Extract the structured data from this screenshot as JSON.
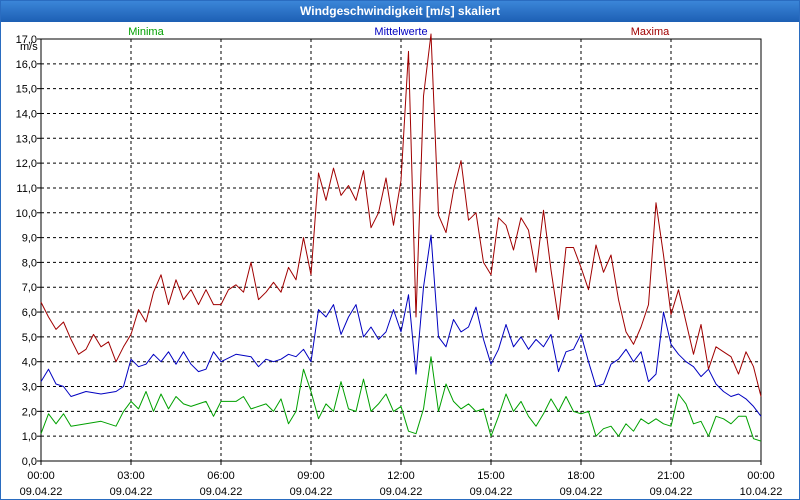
{
  "chart_data": {
    "type": "line",
    "title": "Windgeschwindigkeit [m/s] skaliert",
    "ylabel": "m/s",
    "ylim": [
      0,
      17
    ],
    "yticks": [
      "0,0",
      "1,0",
      "2,0",
      "3,0",
      "4,0",
      "5,0",
      "6,0",
      "7,0",
      "8,0",
      "9,0",
      "10,0",
      "11,0",
      "12,0",
      "13,0",
      "14,0",
      "15,0",
      "16,0",
      "17,0"
    ],
    "xlim": [
      0,
      24
    ],
    "xticks": [
      {
        "time": "00:00",
        "date": "09.04.22"
      },
      {
        "time": "03:00",
        "date": "09.04.22"
      },
      {
        "time": "06:00",
        "date": "09.04.22"
      },
      {
        "time": "09:00",
        "date": "09.04.22"
      },
      {
        "time": "12:00",
        "date": "09.04.22"
      },
      {
        "time": "15:00",
        "date": "09.04.22"
      },
      {
        "time": "18:00",
        "date": "09.04.22"
      },
      {
        "time": "21:00",
        "date": "09.04.22"
      },
      {
        "time": "00:00",
        "date": "10.04.22"
      }
    ],
    "grid": true,
    "series": [
      {
        "name": "Minima",
        "color": "#00a000",
        "points": [
          [
            0,
            1.1
          ],
          [
            0.25,
            1.9
          ],
          [
            0.5,
            1.5
          ],
          [
            0.75,
            1.9
          ],
          [
            1,
            1.4
          ],
          [
            1.5,
            1.5
          ],
          [
            2,
            1.6
          ],
          [
            2.5,
            1.4
          ],
          [
            2.75,
            2.0
          ],
          [
            3,
            2.4
          ],
          [
            3.25,
            2.1
          ],
          [
            3.5,
            2.8
          ],
          [
            3.75,
            2.0
          ],
          [
            4,
            2.7
          ],
          [
            4.25,
            2.1
          ],
          [
            4.5,
            2.6
          ],
          [
            4.75,
            2.3
          ],
          [
            5,
            2.2
          ],
          [
            5.5,
            2.4
          ],
          [
            5.75,
            1.8
          ],
          [
            6,
            2.4
          ],
          [
            6.5,
            2.4
          ],
          [
            6.75,
            2.6
          ],
          [
            7,
            2.1
          ],
          [
            7.5,
            2.3
          ],
          [
            7.75,
            2.0
          ],
          [
            8,
            2.5
          ],
          [
            8.25,
            1.5
          ],
          [
            8.5,
            2.0
          ],
          [
            8.75,
            3.7
          ],
          [
            9,
            2.8
          ],
          [
            9.25,
            1.7
          ],
          [
            9.5,
            2.3
          ],
          [
            9.75,
            2.0
          ],
          [
            10,
            3.2
          ],
          [
            10.25,
            2.1
          ],
          [
            10.5,
            2.0
          ],
          [
            10.75,
            3.3
          ],
          [
            11,
            2.0
          ],
          [
            11.25,
            2.3
          ],
          [
            11.5,
            2.7
          ],
          [
            11.75,
            2.0
          ],
          [
            12,
            2.2
          ],
          [
            12.25,
            1.2
          ],
          [
            12.5,
            1.1
          ],
          [
            12.75,
            2.1
          ],
          [
            13,
            4.2
          ],
          [
            13.25,
            2.0
          ],
          [
            13.5,
            3.1
          ],
          [
            13.75,
            2.4
          ],
          [
            14,
            2.1
          ],
          [
            14.25,
            2.3
          ],
          [
            14.5,
            2.0
          ],
          [
            14.75,
            2.1
          ],
          [
            15,
            1.0
          ],
          [
            15.25,
            1.8
          ],
          [
            15.5,
            2.7
          ],
          [
            15.75,
            2.0
          ],
          [
            16,
            2.4
          ],
          [
            16.25,
            1.8
          ],
          [
            16.5,
            1.4
          ],
          [
            16.75,
            1.9
          ],
          [
            17,
            2.5
          ],
          [
            17.25,
            2.0
          ],
          [
            17.5,
            2.6
          ],
          [
            17.75,
            2.0
          ],
          [
            18,
            1.9
          ],
          [
            18.25,
            2.0
          ],
          [
            18.5,
            1.0
          ],
          [
            18.75,
            1.3
          ],
          [
            19,
            1.4
          ],
          [
            19.25,
            1.0
          ],
          [
            19.5,
            1.5
          ],
          [
            19.75,
            1.2
          ],
          [
            20,
            1.7
          ],
          [
            20.25,
            1.5
          ],
          [
            20.5,
            1.7
          ],
          [
            20.75,
            1.5
          ],
          [
            21,
            1.4
          ],
          [
            21.25,
            2.7
          ],
          [
            21.5,
            2.3
          ],
          [
            21.75,
            1.5
          ],
          [
            22,
            1.6
          ],
          [
            22.25,
            1.0
          ],
          [
            22.5,
            1.8
          ],
          [
            22.75,
            1.7
          ],
          [
            23,
            1.5
          ],
          [
            23.25,
            1.8
          ],
          [
            23.5,
            1.8
          ],
          [
            23.75,
            0.9
          ],
          [
            24,
            0.8
          ]
        ]
      },
      {
        "name": "Mittelwerte",
        "color": "#0000c0",
        "points": [
          [
            0,
            3.2
          ],
          [
            0.25,
            3.7
          ],
          [
            0.5,
            3.1
          ],
          [
            0.75,
            3.0
          ],
          [
            1,
            2.6
          ],
          [
            1.5,
            2.8
          ],
          [
            2,
            2.7
          ],
          [
            2.5,
            2.8
          ],
          [
            2.75,
            3.0
          ],
          [
            3,
            4.1
          ],
          [
            3.25,
            3.8
          ],
          [
            3.5,
            3.9
          ],
          [
            3.75,
            4.3
          ],
          [
            4,
            4.0
          ],
          [
            4.25,
            4.4
          ],
          [
            4.5,
            3.9
          ],
          [
            4.75,
            4.4
          ],
          [
            5,
            3.9
          ],
          [
            5.25,
            3.6
          ],
          [
            5.5,
            3.7
          ],
          [
            5.75,
            4.4
          ],
          [
            6,
            4.0
          ],
          [
            6.5,
            4.3
          ],
          [
            7,
            4.2
          ],
          [
            7.25,
            3.8
          ],
          [
            7.5,
            4.1
          ],
          [
            7.75,
            4.0
          ],
          [
            8,
            4.1
          ],
          [
            8.25,
            4.3
          ],
          [
            8.5,
            4.2
          ],
          [
            8.75,
            4.5
          ],
          [
            9,
            4.0
          ],
          [
            9.25,
            6.1
          ],
          [
            9.5,
            5.8
          ],
          [
            9.75,
            6.3
          ],
          [
            10,
            5.1
          ],
          [
            10.25,
            5.8
          ],
          [
            10.5,
            6.3
          ],
          [
            10.75,
            5.0
          ],
          [
            11,
            5.4
          ],
          [
            11.25,
            4.9
          ],
          [
            11.5,
            5.2
          ],
          [
            11.75,
            6.1
          ],
          [
            12,
            5.2
          ],
          [
            12.25,
            6.7
          ],
          [
            12.5,
            3.5
          ],
          [
            12.75,
            7.0
          ],
          [
            13,
            9.1
          ],
          [
            13.25,
            5.0
          ],
          [
            13.5,
            4.6
          ],
          [
            13.75,
            5.7
          ],
          [
            14,
            5.2
          ],
          [
            14.25,
            5.4
          ],
          [
            14.5,
            6.2
          ],
          [
            14.75,
            4.9
          ],
          [
            15,
            3.9
          ],
          [
            15.25,
            4.5
          ],
          [
            15.5,
            5.5
          ],
          [
            15.75,
            4.6
          ],
          [
            16,
            5.0
          ],
          [
            16.25,
            4.5
          ],
          [
            16.5,
            4.9
          ],
          [
            16.75,
            4.6
          ],
          [
            17,
            5.1
          ],
          [
            17.25,
            3.6
          ],
          [
            17.5,
            4.4
          ],
          [
            17.75,
            4.5
          ],
          [
            18,
            5.1
          ],
          [
            18.25,
            4.0
          ],
          [
            18.5,
            3.0
          ],
          [
            18.75,
            3.1
          ],
          [
            19,
            3.9
          ],
          [
            19.25,
            4.1
          ],
          [
            19.5,
            4.5
          ],
          [
            19.75,
            4.0
          ],
          [
            20,
            4.4
          ],
          [
            20.25,
            3.2
          ],
          [
            20.5,
            3.5
          ],
          [
            20.75,
            6.0
          ],
          [
            21,
            4.7
          ],
          [
            21.25,
            4.3
          ],
          [
            21.5,
            4.0
          ],
          [
            21.75,
            3.8
          ],
          [
            22,
            3.4
          ],
          [
            22.25,
            3.7
          ],
          [
            22.5,
            3.1
          ],
          [
            22.75,
            2.8
          ],
          [
            23,
            2.6
          ],
          [
            23.25,
            2.7
          ],
          [
            23.5,
            2.5
          ],
          [
            23.75,
            2.2
          ],
          [
            24,
            1.8
          ]
        ]
      },
      {
        "name": "Maxima",
        "color": "#a00000",
        "points": [
          [
            0,
            6.4
          ],
          [
            0.25,
            5.8
          ],
          [
            0.5,
            5.3
          ],
          [
            0.75,
            5.6
          ],
          [
            1,
            4.9
          ],
          [
            1.25,
            4.3
          ],
          [
            1.5,
            4.5
          ],
          [
            1.75,
            5.1
          ],
          [
            2,
            4.6
          ],
          [
            2.25,
            4.8
          ],
          [
            2.5,
            4.0
          ],
          [
            2.75,
            4.6
          ],
          [
            3,
            5.1
          ],
          [
            3.25,
            6.1
          ],
          [
            3.5,
            5.6
          ],
          [
            3.75,
            6.8
          ],
          [
            4,
            7.5
          ],
          [
            4.25,
            6.3
          ],
          [
            4.5,
            7.3
          ],
          [
            4.75,
            6.5
          ],
          [
            5,
            6.9
          ],
          [
            5.25,
            6.3
          ],
          [
            5.5,
            6.9
          ],
          [
            5.75,
            6.3
          ],
          [
            6,
            6.3
          ],
          [
            6.25,
            6.9
          ],
          [
            6.5,
            7.1
          ],
          [
            6.75,
            6.8
          ],
          [
            7,
            8.0
          ],
          [
            7.25,
            6.5
          ],
          [
            7.5,
            6.8
          ],
          [
            7.75,
            7.2
          ],
          [
            8,
            6.8
          ],
          [
            8.25,
            7.8
          ],
          [
            8.5,
            7.3
          ],
          [
            8.75,
            9.0
          ],
          [
            9,
            7.5
          ],
          [
            9.25,
            11.6
          ],
          [
            9.5,
            10.5
          ],
          [
            9.75,
            11.8
          ],
          [
            10,
            10.7
          ],
          [
            10.25,
            11.1
          ],
          [
            10.5,
            10.5
          ],
          [
            10.75,
            11.7
          ],
          [
            11,
            9.4
          ],
          [
            11.25,
            10.0
          ],
          [
            11.5,
            11.4
          ],
          [
            11.75,
            9.5
          ],
          [
            12,
            11.3
          ],
          [
            12.25,
            16.5
          ],
          [
            12.5,
            5.8
          ],
          [
            12.75,
            14.7
          ],
          [
            13,
            17.2
          ],
          [
            13.25,
            9.9
          ],
          [
            13.5,
            9.2
          ],
          [
            13.75,
            10.9
          ],
          [
            14,
            12.1
          ],
          [
            14.25,
            9.7
          ],
          [
            14.5,
            10.0
          ],
          [
            14.75,
            8.0
          ],
          [
            15,
            7.5
          ],
          [
            15.25,
            9.8
          ],
          [
            15.5,
            9.5
          ],
          [
            15.75,
            8.5
          ],
          [
            16,
            9.8
          ],
          [
            16.25,
            9.3
          ],
          [
            16.5,
            7.6
          ],
          [
            16.75,
            10.1
          ],
          [
            17,
            7.7
          ],
          [
            17.25,
            5.7
          ],
          [
            17.5,
            8.6
          ],
          [
            17.75,
            8.6
          ],
          [
            18,
            7.8
          ],
          [
            18.25,
            6.9
          ],
          [
            18.5,
            8.7
          ],
          [
            18.75,
            7.6
          ],
          [
            19,
            8.3
          ],
          [
            19.25,
            6.5
          ],
          [
            19.5,
            5.2
          ],
          [
            19.75,
            4.7
          ],
          [
            20,
            5.4
          ],
          [
            20.25,
            6.3
          ],
          [
            20.5,
            10.4
          ],
          [
            20.75,
            8.3
          ],
          [
            21,
            5.9
          ],
          [
            21.25,
            6.9
          ],
          [
            21.5,
            5.6
          ],
          [
            21.75,
            4.3
          ],
          [
            22,
            5.5
          ],
          [
            22.25,
            3.7
          ],
          [
            22.5,
            4.6
          ],
          [
            22.75,
            4.4
          ],
          [
            23,
            4.2
          ],
          [
            23.25,
            3.5
          ],
          [
            23.5,
            4.4
          ],
          [
            23.75,
            3.8
          ],
          [
            24,
            2.6
          ]
        ]
      }
    ]
  }
}
